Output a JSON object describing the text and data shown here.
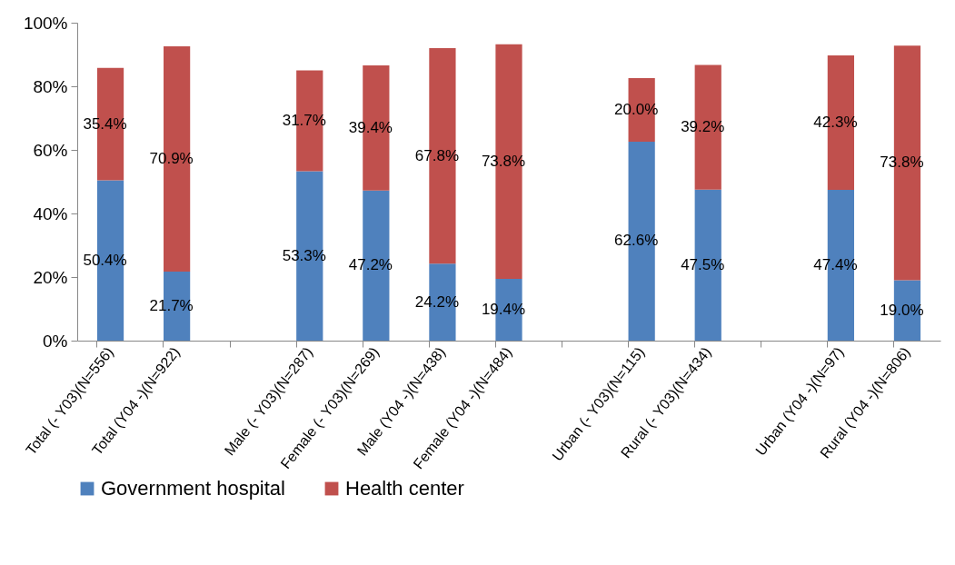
{
  "chart_data": {
    "type": "bar",
    "stacked": true,
    "categories": [
      "Total (- Y03)(N=556)",
      "Total (Y04 -)(N=922)",
      null,
      "Male (- Y03)(N=287)",
      "Female (- Y03)(N=269)",
      "Male (Y04 -)(N=438)",
      "Female (Y04 -)(N=484)",
      null,
      "Urban (- Y03)(N=115)",
      "Rural (- Y03)(N=434)",
      null,
      "Urban (Y04 -)(N=97)",
      "Rural (Y04 -)(N=806)"
    ],
    "series": [
      {
        "name": "Government hospital",
        "color": "#4f81bd",
        "values": [
          50.4,
          21.7,
          null,
          53.3,
          47.2,
          24.2,
          19.4,
          null,
          62.6,
          47.5,
          null,
          47.4,
          19.0
        ],
        "value_labels": [
          "50.4%",
          "21.7%",
          null,
          "53.3%",
          "47.2%",
          "24.2%",
          "19.4%",
          null,
          "62.6%",
          "47.5%",
          null,
          "47.4%",
          "19.0%"
        ]
      },
      {
        "name": "Health center",
        "color": "#c0504d",
        "values": [
          35.4,
          70.9,
          null,
          31.7,
          39.4,
          67.8,
          73.8,
          null,
          20.0,
          39.2,
          null,
          42.3,
          73.8
        ],
        "value_labels": [
          "35.4%",
          "70.9%",
          null,
          "31.7%",
          "39.4%",
          "67.8%",
          "73.8%",
          null,
          "20.0%",
          "39.2%",
          null,
          "42.3%",
          "73.8%"
        ]
      }
    ],
    "ylim": [
      0,
      100
    ],
    "yticks": [
      {
        "value": 0,
        "label": "0%"
      },
      {
        "value": 20,
        "label": "20%"
      },
      {
        "value": 40,
        "label": "40%"
      },
      {
        "value": 60,
        "label": "60%"
      },
      {
        "value": 80,
        "label": "80%"
      },
      {
        "value": 100,
        "label": "100%"
      }
    ],
    "legend": "bottom",
    "grid": false
  }
}
